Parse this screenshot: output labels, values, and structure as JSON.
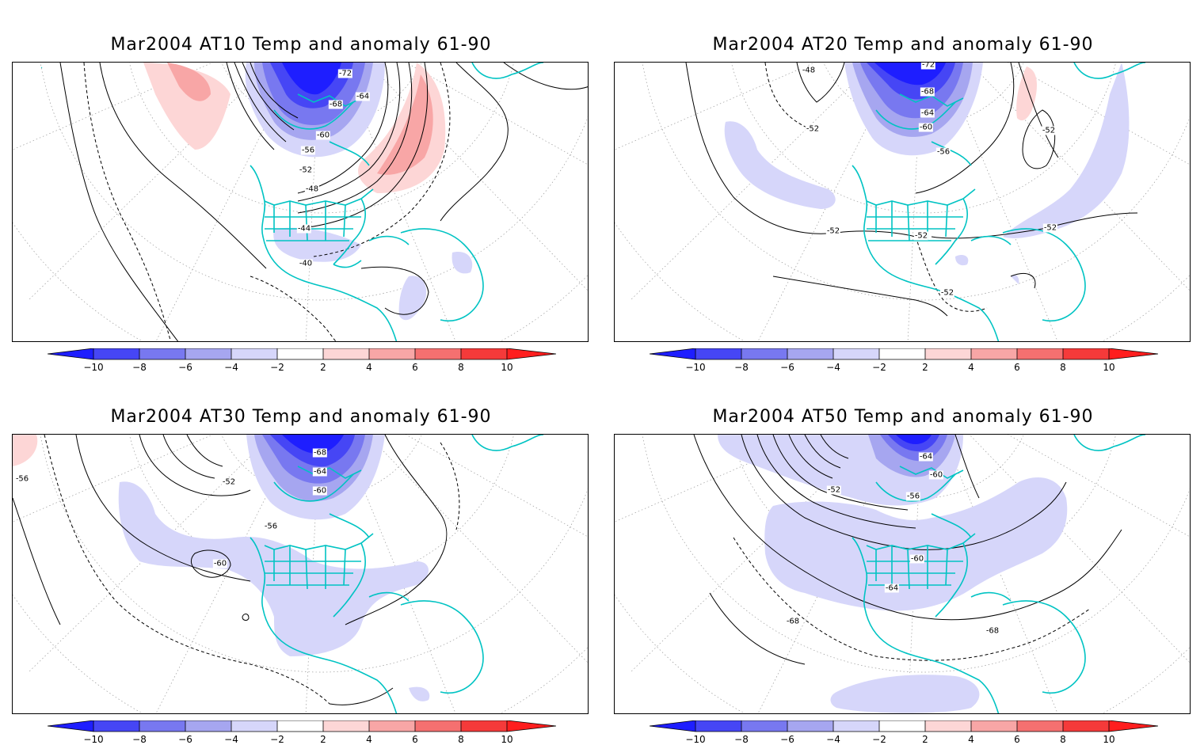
{
  "panels": [
    {
      "title": "Mar2004 AT10 Temp and anomaly 61-90",
      "anomaly_regions": [
        "warm: north Pacific",
        "cold: Arctic / Canada",
        "warm: western Atlantic",
        "cold: Mexico / Gulf"
      ],
      "contour_labels": [
        "-72",
        "-64",
        "-68",
        "-60",
        "-56",
        "-52",
        "-48",
        "-44",
        "-40"
      ]
    },
    {
      "title": "Mar2004 AT20 Temp and anomaly 61-90",
      "anomaly_regions": [
        "cold: Arctic / Canada",
        "cold: eastern Pacific band",
        "cold: North Atlantic band",
        "warm: Greenland sea"
      ],
      "contour_labels": [
        "-48",
        "-72",
        "-68",
        "-64",
        "-60",
        "-56",
        "-52",
        "-52",
        "-52",
        "-52",
        "-52",
        "-52"
      ]
    },
    {
      "title": "Mar2004 AT30 Temp and anomaly 61-90",
      "anomaly_regions": [
        "warm: northwest corner",
        "cold: Arctic / Canada",
        "cold: Pacific-to-Gulf band"
      ],
      "contour_labels": [
        "-56",
        "-68",
        "-64",
        "-60",
        "-52",
        "-56",
        "-60"
      ]
    },
    {
      "title": "Mar2004 AT50 Temp and anomaly 61-90",
      "anomaly_regions": [
        "cold: Arctic / Canada",
        "cold: broad band across North America and Atlantic",
        "cold: tropical Pacific"
      ],
      "contour_labels": [
        "-64",
        "-60",
        "-56",
        "-52",
        "-60",
        "-64",
        "-68",
        "-68"
      ]
    }
  ],
  "colorbar": {
    "ticks": [
      "−10",
      "−8",
      "−6",
      "−4",
      "−2",
      "2",
      "4",
      "6",
      "8",
      "10"
    ],
    "colors": {
      "b5": "#1E1EFF",
      "b4": "#4646F5",
      "b3": "#7878F0",
      "b2": "#A6A6F0",
      "b1": "#D6D6FA",
      "white": "#FFFFFF",
      "r1": "#FDD6D6",
      "r2": "#F8A6A6",
      "r3": "#F57070",
      "r4": "#F53A3A",
      "r5": "#FF1E1E"
    }
  },
  "colors": {
    "coast": "#00C3C3",
    "contour": "#000000",
    "grid": "#9a9a9a"
  }
}
